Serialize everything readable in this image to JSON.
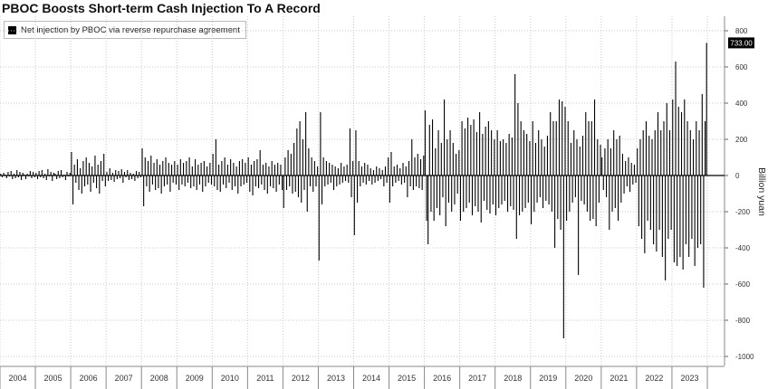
{
  "chart_data": {
    "type": "bar",
    "title": "PBOC Boosts Short-term Cash Injection To A Record",
    "ylabel": "Billion yuan",
    "ylim": [
      -1050,
      880
    ],
    "yticks": [
      800,
      600,
      400,
      200,
      0,
      -200,
      -400,
      -600,
      -800,
      -1000
    ],
    "grid": true,
    "legend_position": "top-left",
    "last_value_label": "733.00",
    "series": [
      {
        "name": "Net injection by PBOC via reverse repurchase agreement",
        "color": "#000000",
        "years": [
          "2004",
          "2005",
          "2006",
          "2007",
          "2008",
          "2009",
          "2010",
          "2011",
          "2012",
          "2013",
          "2014",
          "2015",
          "2016",
          "2017",
          "2018",
          "2019",
          "2020",
          "2021",
          "2022",
          "2023"
        ],
        "values": [
          [
            10,
            -10,
            15,
            5,
            -15,
            20,
            -5,
            25,
            -20,
            10,
            -15,
            30,
            -10,
            20,
            -25,
            15,
            5,
            -20,
            10,
            -5,
            25,
            -15,
            20,
            -10
          ],
          [
            15,
            -20,
            25,
            -10,
            30,
            -15,
            10,
            -25,
            35,
            -5,
            20,
            -30,
            15,
            10,
            -20,
            25,
            -15,
            30,
            -10,
            5,
            -25,
            20,
            -5,
            15
          ],
          [
            130,
            -160,
            60,
            -40,
            90,
            -80,
            40,
            -100,
            80,
            -60,
            100,
            -50,
            70,
            -90,
            50,
            -40,
            110,
            -70,
            60,
            -100,
            80,
            -30,
            120,
            -60
          ],
          [
            20,
            -30,
            40,
            -25,
            15,
            -35,
            30,
            -20,
            25,
            -15,
            35,
            -40,
            20,
            -10,
            30,
            -25,
            15,
            -20,
            10,
            -30,
            25,
            -15,
            20,
            -10
          ],
          [
            150,
            -170,
            100,
            -60,
            80,
            -90,
            110,
            -50,
            70,
            -80,
            90,
            -70,
            60,
            -100,
            80,
            -60,
            100,
            -50,
            70,
            -90,
            60,
            -40,
            80,
            -50
          ],
          [
            60,
            -80,
            90,
            -50,
            70,
            -60,
            80,
            -40,
            100,
            -70,
            50,
            -60,
            90,
            -80,
            60,
            -50,
            70,
            -90,
            80,
            -60,
            50,
            -40,
            70,
            -50
          ],
          [
            120,
            -60,
            200,
            -80,
            60,
            -90,
            80,
            -50,
            100,
            -70,
            60,
            -40,
            90,
            -80,
            70,
            -60,
            50,
            -100,
            80,
            -60,
            90,
            -50,
            70,
            -40
          ],
          [
            100,
            -90,
            60,
            -110,
            80,
            -60,
            90,
            -70,
            140,
            -50,
            60,
            -80,
            70,
            -100,
            50,
            -60,
            80,
            -70,
            60,
            -90,
            70,
            -50,
            60,
            -80
          ],
          [
            -180,
            100,
            -80,
            140,
            -60,
            120,
            -100,
            180,
            -90,
            260,
            -120,
            300,
            -150,
            200,
            -80,
            350,
            -200,
            150,
            -60,
            100,
            -90,
            80,
            -60,
            50
          ],
          [
            -470,
            350,
            -160,
            100,
            -60,
            80,
            -50,
            70,
            -40,
            60,
            -80,
            50,
            -60,
            40,
            -50,
            70,
            -40,
            50,
            -30,
            60,
            -40,
            260,
            -120,
            80
          ],
          [
            -330,
            250,
            -150,
            80,
            -60,
            50,
            -40,
            70,
            -50,
            60,
            -30,
            40,
            -50,
            30,
            -40,
            50,
            -30,
            40,
            -20,
            30,
            -60,
            50,
            -40,
            100
          ],
          [
            -150,
            130,
            -60,
            50,
            -40,
            60,
            -30,
            40,
            -50,
            70,
            -40,
            50,
            -120,
            80,
            -60,
            200,
            -80,
            100,
            -60,
            120,
            -70,
            90,
            -80,
            110
          ],
          [
            360,
            -250,
            -380,
            280,
            -200,
            310,
            -250,
            150,
            -180,
            250,
            -220,
            180,
            -120,
            420,
            -280,
            200,
            -150,
            250,
            -200,
            180,
            -160,
            120,
            -100,
            140
          ],
          [
            -250,
            300,
            -200,
            260,
            -180,
            320,
            -150,
            280,
            -220,
            310,
            -170,
            240,
            -200,
            350,
            -260,
            230,
            -140,
            270,
            -190,
            300,
            -210,
            250,
            -160,
            200
          ],
          [
            -220,
            250,
            -180,
            190,
            -160,
            200,
            -140,
            180,
            -200,
            230,
            -170,
            210,
            -190,
            560,
            -350,
            400,
            -220,
            300,
            -200,
            250,
            -180,
            230,
            -150,
            190
          ],
          [
            -270,
            300,
            -200,
            180,
            -150,
            250,
            -120,
            200,
            -180,
            160,
            -140,
            220,
            -160,
            350,
            -200,
            300,
            -400,
            300,
            -240,
            420,
            -300,
            410,
            -900,
            380
          ],
          [
            -250,
            300,
            -200,
            180,
            -150,
            250,
            -120,
            200,
            -550,
            160,
            -140,
            220,
            -160,
            350,
            -200,
            300,
            -250,
            300,
            -240,
            420,
            -280,
            200,
            -150,
            170
          ],
          [
            100,
            -80,
            150,
            -120,
            200,
            -300,
            150,
            -200,
            250,
            -180,
            200,
            -250,
            220,
            -150,
            120,
            -100,
            80,
            -60,
            100,
            -90,
            70,
            -50,
            60,
            -40
          ],
          [
            150,
            -280,
            200,
            -350,
            250,
            -430,
            300,
            -250,
            220,
            -300,
            200,
            -380,
            250,
            -420,
            350,
            -300,
            250,
            -450,
            300,
            -580,
            400,
            -350,
            250,
            -300
          ],
          [
            420,
            -480,
            630,
            -500,
            380,
            -450,
            350,
            -520,
            420,
            -380,
            300,
            -450,
            250,
            -350,
            200,
            -500,
            300,
            -400,
            250,
            -380,
            450,
            -620,
            300,
            733
          ]
        ]
      }
    ]
  }
}
